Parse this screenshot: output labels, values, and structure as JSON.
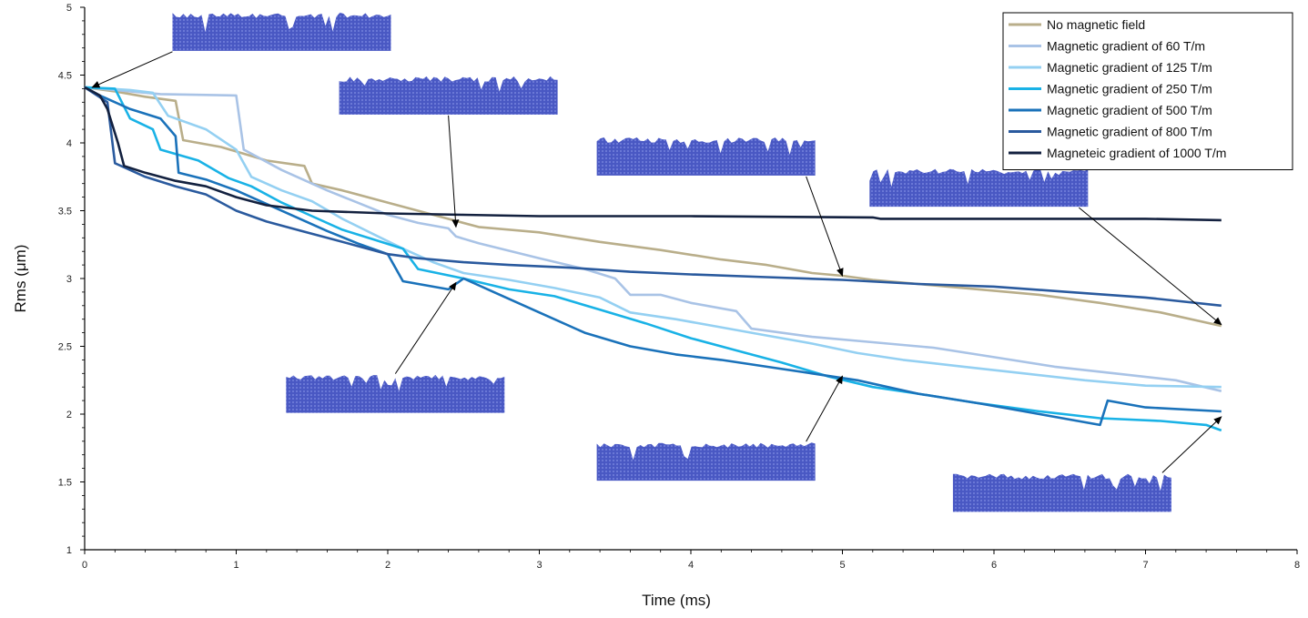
{
  "chart_data": {
    "type": "line",
    "xlabel": "Time (ms)",
    "ylabel": "Rms (μm)",
    "xlim": [
      0,
      8
    ],
    "ylim": [
      1,
      5
    ],
    "xticks": [
      "0",
      "1",
      "2",
      "3",
      "4",
      "5",
      "6",
      "7",
      "8"
    ],
    "yticks": [
      "1",
      "1.5",
      "2",
      "2.5",
      "3",
      "3.5",
      "4",
      "4.5",
      "5"
    ],
    "grid": false,
    "legend_position": "top-right",
    "colors": {
      "no_field": "#b9ae8a",
      "g60": "#a9c3e6",
      "g125": "#94d0f2",
      "g250": "#19b2e6",
      "g500": "#1a72ba",
      "g800": "#2a5a9e",
      "g1000": "#13213f"
    },
    "series": [
      {
        "name": "No magnetic field",
        "color_key": "no_field",
        "points": [
          [
            0,
            4.41
          ],
          [
            0.2,
            4.38
          ],
          [
            0.4,
            4.34
          ],
          [
            0.6,
            4.31
          ],
          [
            0.65,
            4.02
          ],
          [
            0.9,
            3.97
          ],
          [
            1.05,
            3.92
          ],
          [
            1.2,
            3.87
          ],
          [
            1.45,
            3.83
          ],
          [
            1.5,
            3.7
          ],
          [
            1.7,
            3.65
          ],
          [
            2.0,
            3.56
          ],
          [
            2.3,
            3.47
          ],
          [
            2.6,
            3.38
          ],
          [
            3.0,
            3.34
          ],
          [
            3.4,
            3.27
          ],
          [
            3.8,
            3.21
          ],
          [
            4.2,
            3.14
          ],
          [
            4.5,
            3.1
          ],
          [
            4.8,
            3.04
          ],
          [
            5.0,
            3.02
          ],
          [
            5.2,
            2.99
          ],
          [
            5.5,
            2.96
          ],
          [
            5.9,
            2.92
          ],
          [
            6.3,
            2.88
          ],
          [
            6.7,
            2.82
          ],
          [
            7.1,
            2.75
          ],
          [
            7.5,
            2.65
          ]
        ]
      },
      {
        "name": "Magnetic gradient of 60 T/m",
        "color_key": "g60",
        "points": [
          [
            0,
            4.41
          ],
          [
            0.3,
            4.38
          ],
          [
            0.5,
            4.36
          ],
          [
            1.0,
            4.35
          ],
          [
            1.05,
            3.95
          ],
          [
            1.3,
            3.8
          ],
          [
            1.6,
            3.65
          ],
          [
            1.8,
            3.56
          ],
          [
            2.0,
            3.47
          ],
          [
            2.2,
            3.41
          ],
          [
            2.4,
            3.37
          ],
          [
            2.45,
            3.31
          ],
          [
            2.6,
            3.26
          ],
          [
            3.0,
            3.15
          ],
          [
            3.3,
            3.07
          ],
          [
            3.5,
            3.0
          ],
          [
            3.6,
            2.88
          ],
          [
            3.8,
            2.88
          ],
          [
            4.0,
            2.82
          ],
          [
            4.3,
            2.76
          ],
          [
            4.4,
            2.63
          ],
          [
            4.8,
            2.57
          ],
          [
            5.2,
            2.53
          ],
          [
            5.6,
            2.49
          ],
          [
            6.0,
            2.42
          ],
          [
            6.4,
            2.35
          ],
          [
            6.8,
            2.3
          ],
          [
            7.2,
            2.25
          ],
          [
            7.5,
            2.17
          ]
        ]
      },
      {
        "name": "Magnetic gradient of 125 T/m",
        "color_key": "g125",
        "points": [
          [
            0,
            4.41
          ],
          [
            0.3,
            4.39
          ],
          [
            0.45,
            4.37
          ],
          [
            0.55,
            4.2
          ],
          [
            0.8,
            4.1
          ],
          [
            1.0,
            3.95
          ],
          [
            1.1,
            3.75
          ],
          [
            1.3,
            3.65
          ],
          [
            1.5,
            3.57
          ],
          [
            1.7,
            3.44
          ],
          [
            1.9,
            3.33
          ],
          [
            2.1,
            3.22
          ],
          [
            2.3,
            3.12
          ],
          [
            2.5,
            3.04
          ],
          [
            2.8,
            2.99
          ],
          [
            3.1,
            2.93
          ],
          [
            3.4,
            2.86
          ],
          [
            3.6,
            2.75
          ],
          [
            3.9,
            2.7
          ],
          [
            4.2,
            2.64
          ],
          [
            4.5,
            2.58
          ],
          [
            4.8,
            2.52
          ],
          [
            5.1,
            2.45
          ],
          [
            5.4,
            2.4
          ],
          [
            5.8,
            2.35
          ],
          [
            6.2,
            2.3
          ],
          [
            6.6,
            2.25
          ],
          [
            7.0,
            2.21
          ],
          [
            7.5,
            2.2
          ]
        ]
      },
      {
        "name": "Magnetic gradient of 250 T/m",
        "color_key": "g250",
        "points": [
          [
            0,
            4.41
          ],
          [
            0.2,
            4.4
          ],
          [
            0.3,
            4.18
          ],
          [
            0.45,
            4.1
          ],
          [
            0.5,
            3.95
          ],
          [
            0.75,
            3.87
          ],
          [
            0.95,
            3.74
          ],
          [
            1.1,
            3.68
          ],
          [
            1.3,
            3.56
          ],
          [
            1.5,
            3.46
          ],
          [
            1.7,
            3.36
          ],
          [
            1.9,
            3.29
          ],
          [
            2.1,
            3.22
          ],
          [
            2.2,
            3.07
          ],
          [
            2.5,
            3.0
          ],
          [
            2.8,
            2.92
          ],
          [
            3.1,
            2.87
          ],
          [
            3.4,
            2.77
          ],
          [
            3.7,
            2.67
          ],
          [
            4.0,
            2.56
          ],
          [
            4.3,
            2.47
          ],
          [
            4.6,
            2.38
          ],
          [
            4.9,
            2.28
          ],
          [
            5.2,
            2.2
          ],
          [
            5.5,
            2.15
          ],
          [
            5.9,
            2.08
          ],
          [
            6.3,
            2.02
          ],
          [
            6.7,
            1.97
          ],
          [
            7.1,
            1.95
          ],
          [
            7.4,
            1.92
          ],
          [
            7.5,
            1.88
          ]
        ]
      },
      {
        "name": "Magnetic gradient of 500 T/m",
        "color_key": "g500",
        "points": [
          [
            0,
            4.41
          ],
          [
            0.1,
            4.35
          ],
          [
            0.2,
            4.3
          ],
          [
            0.3,
            4.25
          ],
          [
            0.5,
            4.18
          ],
          [
            0.6,
            4.05
          ],
          [
            0.62,
            3.78
          ],
          [
            0.8,
            3.73
          ],
          [
            1.0,
            3.65
          ],
          [
            1.2,
            3.55
          ],
          [
            1.4,
            3.45
          ],
          [
            1.6,
            3.35
          ],
          [
            1.8,
            3.26
          ],
          [
            2.0,
            3.18
          ],
          [
            2.1,
            2.98
          ],
          [
            2.4,
            2.92
          ],
          [
            2.5,
            3.0
          ],
          [
            2.7,
            2.9
          ],
          [
            3.0,
            2.75
          ],
          [
            3.3,
            2.6
          ],
          [
            3.6,
            2.5
          ],
          [
            3.9,
            2.44
          ],
          [
            4.2,
            2.4
          ],
          [
            4.5,
            2.35
          ],
          [
            4.8,
            2.3
          ],
          [
            5.1,
            2.25
          ],
          [
            5.5,
            2.15
          ],
          [
            5.9,
            2.08
          ],
          [
            6.3,
            2.0
          ],
          [
            6.7,
            1.92
          ],
          [
            6.75,
            2.1
          ],
          [
            7.0,
            2.05
          ],
          [
            7.5,
            2.02
          ]
        ]
      },
      {
        "name": "Magnetic gradient of 800 T/m",
        "color_key": "g800",
        "points": [
          [
            0,
            4.41
          ],
          [
            0.15,
            4.3
          ],
          [
            0.2,
            3.85
          ],
          [
            0.4,
            3.75
          ],
          [
            0.6,
            3.68
          ],
          [
            0.8,
            3.62
          ],
          [
            1.0,
            3.5
          ],
          [
            1.2,
            3.42
          ],
          [
            1.4,
            3.36
          ],
          [
            1.6,
            3.3
          ],
          [
            1.8,
            3.24
          ],
          [
            2.0,
            3.18
          ],
          [
            2.2,
            3.15
          ],
          [
            2.5,
            3.12
          ],
          [
            2.8,
            3.1
          ],
          [
            3.2,
            3.08
          ],
          [
            3.6,
            3.05
          ],
          [
            4.0,
            3.03
          ],
          [
            4.5,
            3.01
          ],
          [
            5.0,
            2.99
          ],
          [
            5.5,
            2.96
          ],
          [
            6.0,
            2.94
          ],
          [
            6.5,
            2.9
          ],
          [
            7.0,
            2.86
          ],
          [
            7.5,
            2.8
          ]
        ]
      },
      {
        "name": "Magneteic gradient of 1000 T/m",
        "color_key": "g1000",
        "points": [
          [
            0,
            4.41
          ],
          [
            0.1,
            4.35
          ],
          [
            0.15,
            4.25
          ],
          [
            0.22,
            4.0
          ],
          [
            0.26,
            3.83
          ],
          [
            0.4,
            3.78
          ],
          [
            0.6,
            3.72
          ],
          [
            0.8,
            3.68
          ],
          [
            1.0,
            3.6
          ],
          [
            1.2,
            3.54
          ],
          [
            1.5,
            3.5
          ],
          [
            2.0,
            3.48
          ],
          [
            2.5,
            3.47
          ],
          [
            3.0,
            3.46
          ],
          [
            4.0,
            3.46
          ],
          [
            5.2,
            3.45
          ],
          [
            5.25,
            3.44
          ],
          [
            6.0,
            3.44
          ],
          [
            7.0,
            3.44
          ],
          [
            7.5,
            3.43
          ]
        ]
      }
    ],
    "surface_insets": [
      {
        "pos": [
          1.3,
          4.82
        ],
        "arrow_to": [
          0.05,
          4.41
        ]
      },
      {
        "pos": [
          2.4,
          4.35
        ],
        "arrow_to": [
          2.45,
          3.38
        ]
      },
      {
        "pos": [
          4.1,
          3.9
        ],
        "arrow_to": [
          5.0,
          3.02
        ]
      },
      {
        "pos": [
          5.9,
          3.67
        ],
        "arrow_to": [
          7.5,
          2.66
        ]
      },
      {
        "pos": [
          2.05,
          2.15
        ],
        "arrow_to": [
          2.45,
          2.97
        ]
      },
      {
        "pos": [
          4.1,
          1.65
        ],
        "arrow_to": [
          5.0,
          2.28
        ]
      },
      {
        "pos": [
          6.45,
          1.42
        ],
        "arrow_to": [
          7.5,
          1.98
        ]
      }
    ]
  }
}
